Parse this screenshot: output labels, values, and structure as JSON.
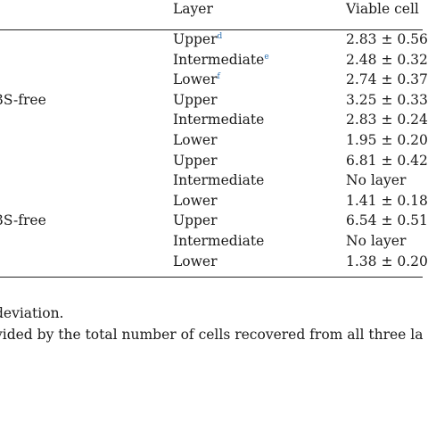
{
  "header": {
    "layer": "Layer",
    "viable": "Viable cell"
  },
  "rows": [
    {
      "media": "",
      "layer": "Upper",
      "sup": "d",
      "viable": "2.83 ± 0.56"
    },
    {
      "media": "",
      "layer": "Intermediate",
      "sup": "e",
      "viable": "2.48 ± 0.32"
    },
    {
      "media": "",
      "layer": "Lower",
      "sup": "f",
      "viable": "2.74 ± 0.37"
    },
    {
      "media": "3S-free",
      "layer": "Upper",
      "sup": "",
      "viable": "3.25 ± 0.33"
    },
    {
      "media": "",
      "layer": "Intermediate",
      "sup": "",
      "viable": "2.83 ± 0.24"
    },
    {
      "media": "",
      "layer": "Lower",
      "sup": "",
      "viable": "1.95 ± 0.20"
    },
    {
      "media": "",
      "layer": "Upper",
      "sup": "",
      "viable": "6.81 ± 0.42"
    },
    {
      "media": "",
      "layer": "Intermediate",
      "sup": "",
      "viable": "No layer"
    },
    {
      "media": "",
      "layer": "Lower",
      "sup": "",
      "viable": "1.41 ± 0.18"
    },
    {
      "media": "3S-free",
      "layer": "Upper",
      "sup": "",
      "viable": "6.54 ± 0.51"
    },
    {
      "media": "",
      "layer": "Intermediate",
      "sup": "",
      "viable": "No layer"
    },
    {
      "media": "",
      "layer": "Lower",
      "sup": "",
      "viable": "1.38 ± 0.20"
    }
  ],
  "footnotes": {
    "line1": "deviation.",
    "line2": "vided by the total number of cells recovered from all three la"
  }
}
